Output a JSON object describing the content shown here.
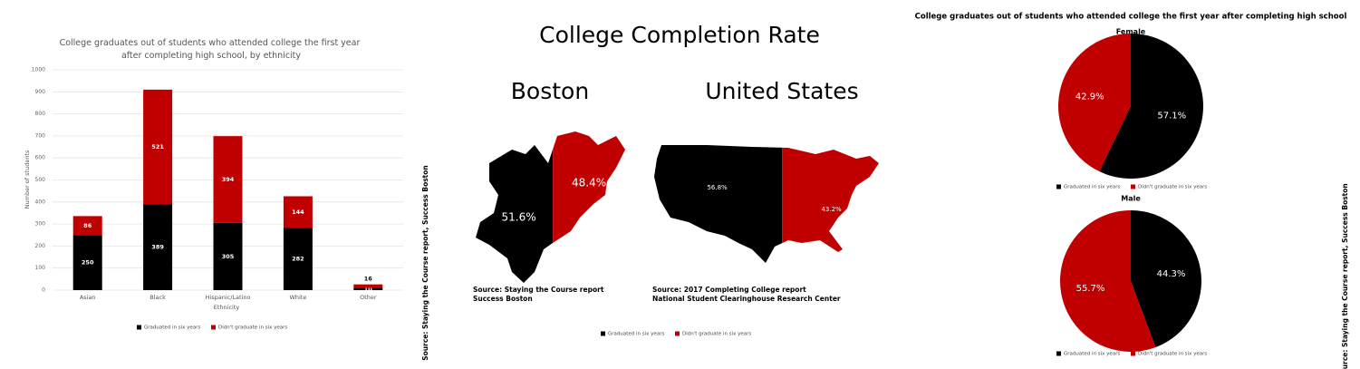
{
  "chart_data": [
    {
      "type": "bar",
      "title": "College graduates out of students who attended college the first year after completing high school, by ethnicity",
      "xlabel": "Ethnicity",
      "ylabel": "Number of students",
      "categories": [
        "Asian",
        "Black",
        "Hispanic/Latino",
        "White",
        "Other"
      ],
      "series": [
        {
          "name": "Graduated in six years",
          "color": "#000000",
          "values": [
            250,
            389,
            305,
            282,
            10
          ]
        },
        {
          "name": "Didn't graduate in six years",
          "color": "#c00000",
          "values": [
            86,
            521,
            394,
            144,
            16
          ]
        }
      ],
      "ylim": [
        0,
        1000
      ],
      "yticks": [
        0,
        100,
        200,
        300,
        400,
        500,
        600,
        700,
        800,
        900,
        1000
      ],
      "grid": true
    },
    {
      "type": "map",
      "title": "College Completion Rate",
      "series": [
        {
          "name": "Graduated in six years",
          "color": "#000000"
        },
        {
          "name": "Didn't graduate in six years",
          "color": "#c00000"
        }
      ],
      "maps": [
        {
          "name": "Boston",
          "values": [
            51.6,
            48.4
          ],
          "value_labels": [
            "51.6%",
            "48.4%"
          ],
          "source": [
            "Source: Staying the Course report",
            "Success Boston"
          ]
        },
        {
          "name": "United States",
          "values": [
            56.8,
            43.2
          ],
          "value_labels": [
            "56.8%",
            "43.2%"
          ],
          "source": [
            "Source: 2017 Completing College report",
            "National Student Clearinghouse Research Center"
          ]
        }
      ],
      "note": "Source: Staying the Course report, Success Boston"
    },
    {
      "type": "pie",
      "title": "College graduates out of students who attended college the first year after completing high school",
      "series": [
        {
          "name": "Graduated in six years",
          "color": "#000000"
        },
        {
          "name": "Didn't graduate in six years",
          "color": "#c00000"
        }
      ],
      "pies": [
        {
          "name": "Female",
          "values": [
            57.1,
            42.9
          ],
          "value_labels": [
            "57.1%",
            "42.9%"
          ]
        },
        {
          "name": "Male",
          "values": [
            44.3,
            55.7
          ],
          "value_labels": [
            "44.3%",
            "55.7%"
          ]
        }
      ],
      "note": "Source: Staying the Course report, Success Boston"
    }
  ]
}
